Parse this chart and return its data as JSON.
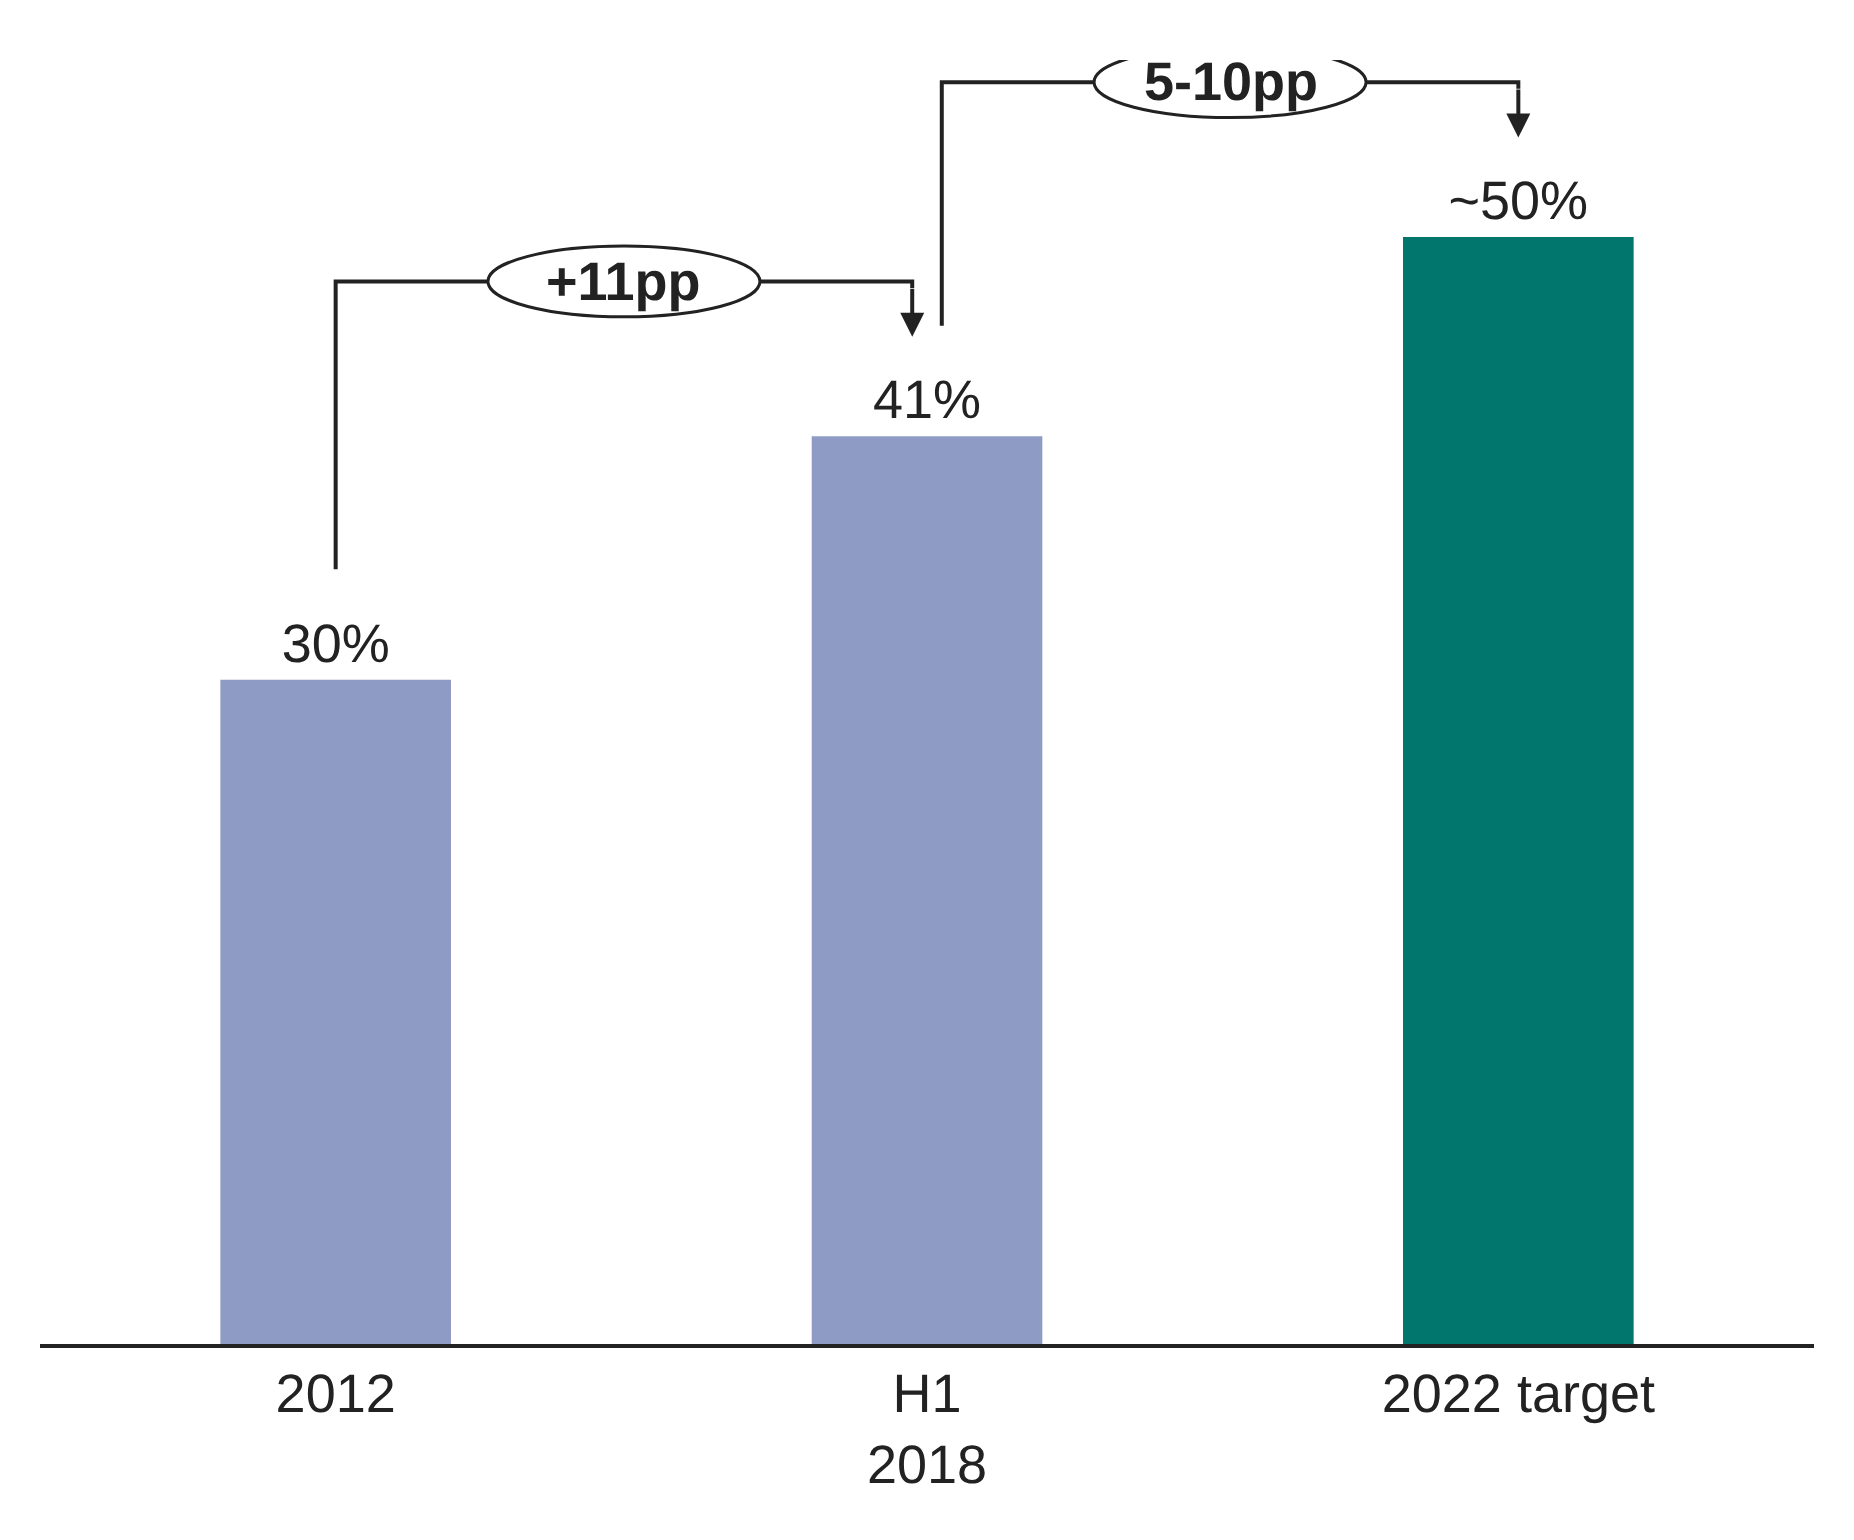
{
  "chart_data": {
    "type": "bar",
    "categories": [
      "2012",
      "H1\n2018",
      "2022 target"
    ],
    "values": [
      30,
      41,
      50
    ],
    "colors": [
      "#8e9bc4",
      "#8e9bc4",
      "#00766c"
    ],
    "value_labels": [
      "30%",
      "41%",
      "~50%"
    ],
    "annotations": [
      "+11pp",
      "5-10pp"
    ],
    "legend": false
  }
}
